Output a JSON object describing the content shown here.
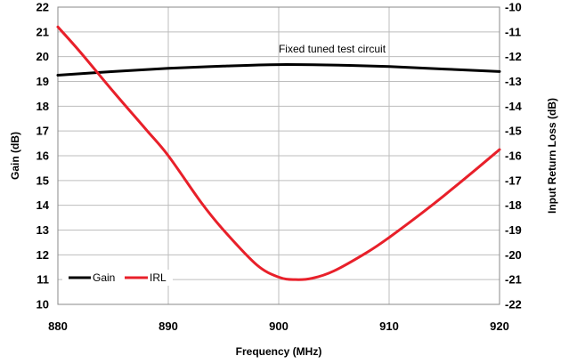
{
  "chart_data": {
    "type": "line",
    "annotation": "Fixed tuned test circuit",
    "xlabel": "Frequency (MHz)",
    "ylabel_left": "Gain (dB)",
    "ylabel_right": "Input Return Loss (dB)",
    "xlim": [
      880,
      920
    ],
    "ylim_left": [
      10,
      22
    ],
    "ylim_right": [
      -22,
      -10
    ],
    "grid": true,
    "legend_position": "bottom-left",
    "x_ticks": [
      880,
      890,
      900,
      910,
      920
    ],
    "y_ticks_left": [
      10,
      11,
      12,
      13,
      14,
      15,
      16,
      17,
      18,
      19,
      20,
      21,
      22
    ],
    "y_ticks_right": [
      -22,
      -21,
      -20,
      -19,
      -18,
      -17,
      -16,
      -15,
      -14,
      -13,
      -12,
      -11,
      -10
    ],
    "series": [
      {
        "name": "Gain",
        "axis": "left",
        "color": "#000000",
        "x": [
          880,
          885,
          890,
          895,
          900,
          905,
          910,
          915,
          920
        ],
        "y": [
          19.25,
          19.4,
          19.53,
          19.62,
          19.68,
          19.66,
          19.6,
          19.5,
          19.4
        ]
      },
      {
        "name": "IRL",
        "axis": "right",
        "color": "#e8202a",
        "x": [
          880,
          882,
          885,
          888,
          890,
          893,
          895,
          898,
          900,
          901.5,
          903,
          905,
          908,
          910,
          913,
          915,
          918,
          920
        ],
        "y": [
          -10.8,
          -11.8,
          -13.4,
          -14.95,
          -16.0,
          -17.9,
          -19.0,
          -20.4,
          -20.9,
          -21.0,
          -20.95,
          -20.65,
          -19.9,
          -19.3,
          -18.3,
          -17.6,
          -16.5,
          -15.75
        ]
      }
    ]
  }
}
